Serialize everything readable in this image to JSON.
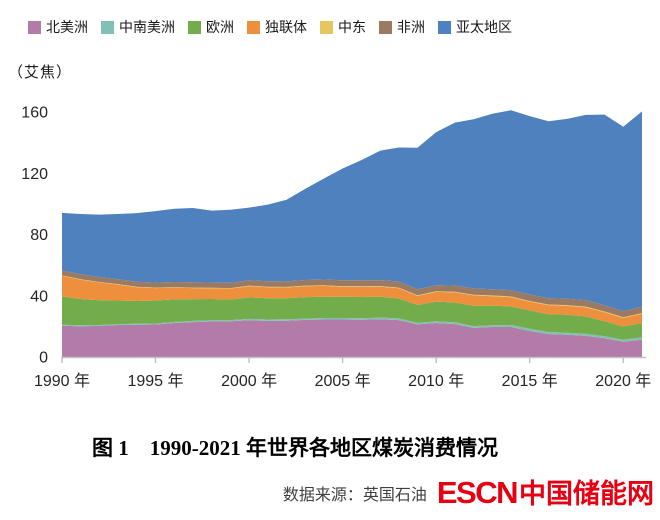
{
  "chart_data": {
    "type": "area",
    "stacked": true,
    "title": "图 1　1990-2021 年世界各地区煤炭消费情况",
    "unit_label": "（艾焦）",
    "xlabel": "",
    "ylabel": "艾焦",
    "ylim": [
      0,
      170
    ],
    "grid": false,
    "legend_position": "top",
    "x": [
      1990,
      1991,
      1992,
      1993,
      1994,
      1995,
      1996,
      1997,
      1998,
      1999,
      2000,
      2001,
      2002,
      2003,
      2004,
      2005,
      2006,
      2007,
      2008,
      2009,
      2010,
      2011,
      2012,
      2013,
      2014,
      2015,
      2016,
      2017,
      2018,
      2019,
      2020,
      2021
    ],
    "x_tick_years": [
      1990,
      1995,
      2000,
      2005,
      2010,
      2015,
      2020
    ],
    "x_tick_labels": [
      "1990 年",
      "1995 年",
      "2000 年",
      "2005 年",
      "2010 年",
      "2015 年",
      "2020 年"
    ],
    "y_ticks": [
      0,
      40,
      80,
      120,
      160
    ],
    "y_tick_labels": [
      "0",
      "40",
      "80",
      "120",
      "160"
    ],
    "series": [
      {
        "id": "north-america",
        "name": "北美洲",
        "color": "#b27ba8",
        "values": [
          20.4,
          20.1,
          20.3,
          20.9,
          21.0,
          21.2,
          22.2,
          22.8,
          23.2,
          23.3,
          24.0,
          23.6,
          23.7,
          24.2,
          24.5,
          24.5,
          24.3,
          24.6,
          24.1,
          21.3,
          22.2,
          21.5,
          19.0,
          19.6,
          19.6,
          17.0,
          15.0,
          14.5,
          13.8,
          12.2,
          9.9,
          11.3
        ]
      },
      {
        "id": "central-south-america",
        "name": "中南美洲",
        "color": "#82c0b5",
        "values": [
          0.6,
          0.6,
          0.6,
          0.6,
          0.7,
          0.7,
          0.7,
          0.8,
          0.8,
          0.8,
          0.9,
          0.9,
          0.9,
          0.9,
          1.0,
          1.0,
          1.0,
          1.1,
          1.1,
          1.0,
          1.1,
          1.1,
          1.2,
          1.2,
          1.3,
          1.4,
          1.3,
          1.4,
          1.4,
          1.4,
          1.3,
          1.5
        ]
      },
      {
        "id": "europe",
        "name": "欧洲",
        "color": "#73ad4b",
        "values": [
          18.5,
          17.2,
          16.2,
          15.4,
          14.9,
          15.0,
          14.7,
          14.2,
          13.9,
          13.4,
          14.0,
          13.9,
          13.8,
          14.0,
          13.9,
          13.8,
          13.9,
          13.7,
          13.0,
          11.7,
          12.9,
          13.0,
          13.3,
          12.8,
          12.1,
          12.0,
          11.7,
          11.7,
          11.3,
          9.8,
          8.7,
          9.4
        ]
      },
      {
        "id": "cis",
        "name": "独联体",
        "color": "#ee8f3e",
        "values": [
          13.5,
          12.6,
          11.6,
          10.4,
          9.0,
          8.1,
          7.7,
          7.2,
          7.0,
          7.2,
          7.3,
          7.1,
          7.0,
          7.1,
          7.0,
          6.5,
          6.6,
          6.5,
          6.7,
          5.9,
          6.3,
          6.6,
          6.7,
          6.1,
          6.0,
          5.7,
          5.8,
          5.8,
          5.9,
          5.8,
          5.5,
          6.0
        ]
      },
      {
        "id": "middle-east",
        "name": "中东",
        "color": "#e6c65f",
        "values": [
          0.3,
          0.3,
          0.3,
          0.3,
          0.3,
          0.3,
          0.3,
          0.3,
          0.3,
          0.3,
          0.4,
          0.4,
          0.4,
          0.4,
          0.4,
          0.4,
          0.4,
          0.4,
          0.4,
          0.4,
          0.4,
          0.4,
          0.5,
          0.5,
          0.5,
          0.5,
          0.5,
          0.5,
          0.5,
          0.5,
          0.5,
          0.5
        ]
      },
      {
        "id": "africa",
        "name": "非洲",
        "color": "#9b7a63",
        "values": [
          3.2,
          3.2,
          3.2,
          3.2,
          3.3,
          3.3,
          3.4,
          3.5,
          3.4,
          3.4,
          3.5,
          3.6,
          3.6,
          3.7,
          3.8,
          3.9,
          3.9,
          3.9,
          4.0,
          3.9,
          4.0,
          4.0,
          4.1,
          4.1,
          4.2,
          4.2,
          4.1,
          4.1,
          4.2,
          4.1,
          4.0,
          4.2
        ]
      },
      {
        "id": "asia-pacific",
        "name": "亚太地区",
        "color": "#4e81bd",
        "values": [
          37.6,
          39.4,
          40.8,
          42.6,
          44.8,
          46.7,
          47.8,
          48.5,
          47.0,
          47.7,
          47.5,
          50.0,
          53.3,
          59.5,
          66.0,
          73.0,
          78.5,
          84.5,
          87.5,
          92.5,
          100.0,
          106.5,
          110.5,
          114.5,
          117.5,
          116.5,
          115.5,
          117.5,
          121.0,
          124.5,
          120.5,
          127.5
        ]
      }
    ],
    "axis_color": "#c5bcc5"
  },
  "footer": {
    "source_label": "数据来源：英国石油",
    "logo_en": "ESCN",
    "logo_cn": "中国储能网",
    "logo_color": "#e60012"
  }
}
